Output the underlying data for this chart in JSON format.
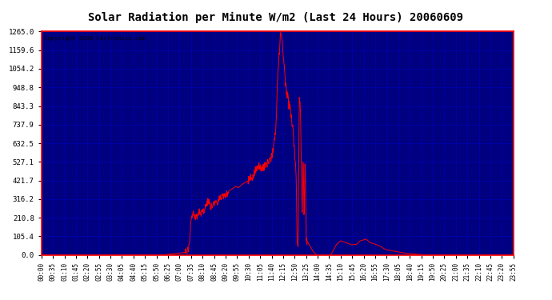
{
  "title": "Solar Radiation per Minute W/m2 (Last 24 Hours) 20060609",
  "copyright_text": "Copyright 2006 Cartronics.com",
  "background_color": "#000080",
  "line_color": "#FF0000",
  "grid_color": "#0000FF",
  "y_min": 0.0,
  "y_max": 1265.0,
  "y_ticks": [
    0.0,
    105.4,
    210.8,
    316.2,
    421.7,
    527.1,
    632.5,
    737.9,
    843.3,
    948.8,
    1054.2,
    1159.6,
    1265.0
  ],
  "x_tick_labels": [
    "00:00",
    "00:35",
    "01:10",
    "01:45",
    "02:20",
    "02:55",
    "03:30",
    "04:05",
    "04:40",
    "05:15",
    "05:50",
    "06:25",
    "07:00",
    "07:35",
    "08:10",
    "08:45",
    "09:20",
    "09:55",
    "10:30",
    "11:05",
    "11:40",
    "12:15",
    "12:50",
    "13:25",
    "14:00",
    "14:35",
    "15:10",
    "15:45",
    "16:20",
    "16:55",
    "17:30",
    "18:05",
    "18:40",
    "19:15",
    "19:50",
    "20:25",
    "21:00",
    "21:35",
    "22:10",
    "22:45",
    "23:20",
    "23:55"
  ],
  "num_points": 1440
}
